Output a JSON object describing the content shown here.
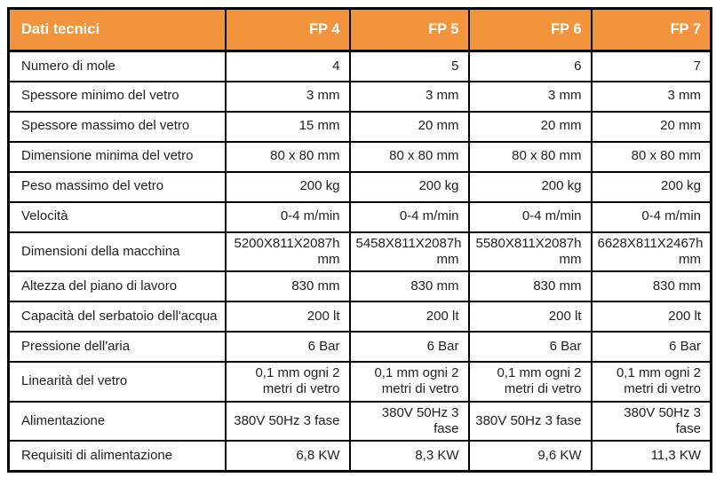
{
  "table": {
    "header": {
      "label": "Dati tecnici",
      "columns": [
        "FP 4",
        "FP 5",
        "FP 6",
        "FP 7"
      ]
    },
    "rows": [
      {
        "label": "Numero di mole",
        "values": [
          "4",
          "5",
          "6",
          "7"
        ]
      },
      {
        "label": "Spessore minimo del vetro",
        "values": [
          "3 mm",
          "3 mm",
          "3 mm",
          "3 mm"
        ]
      },
      {
        "label": "Spessore massimo del vetro",
        "values": [
          "15 mm",
          "20 mm",
          "20 mm",
          "20 mm"
        ]
      },
      {
        "label": "Dimensione minima del vetro",
        "values": [
          "80 x 80 mm",
          "80 x 80 mm",
          "80 x 80 mm",
          "80 x 80 mm"
        ]
      },
      {
        "label": "Peso massimo del vetro",
        "values": [
          "200 kg",
          "200 kg",
          "200 kg",
          "200 kg"
        ]
      },
      {
        "label": "Velocità",
        "values": [
          "0-4 m/min",
          "0-4 m/min",
          "0-4 m/min",
          "0-4 m/min"
        ]
      },
      {
        "label": "Dimensioni della macchina",
        "values": [
          "5200X811X2087h mm",
          "5458X811X2087h mm",
          "5580X811X2087h mm",
          "6628X811X2467h mm"
        ]
      },
      {
        "label": "Altezza del piano di lavoro",
        "values": [
          "830 mm",
          "830 mm",
          "830 mm",
          "830 mm"
        ]
      },
      {
        "label": "Capacità del serbatoio dell'acqua",
        "values": [
          "200 lt",
          "200 lt",
          "200 lt",
          "200 lt"
        ]
      },
      {
        "label": "Pressione dell'aria",
        "values": [
          "6 Bar",
          "6 Bar",
          "6 Bar",
          "6 Bar"
        ]
      },
      {
        "label": "Linearità del vetro",
        "values": [
          "0,1 mm ogni 2 metri di vetro",
          "0,1 mm ogni 2 metri di vetro",
          "0,1 mm ogni 2 metri di vetro",
          "0,1 mm ogni 2 metri di vetro"
        ]
      },
      {
        "label": "Alimentazione",
        "values": [
          "380V 50Hz 3 fase",
          "380V 50Hz 3 fase",
          "380V 50Hz 3 fase",
          "380V 50Hz 3 fase"
        ]
      },
      {
        "label": "Requisiti di alimentazione",
        "values": [
          "6,8 KW",
          "8,3 KW",
          "9,6 KW",
          "11,3 KW"
        ]
      }
    ],
    "colors": {
      "header_bg": "#F2943B",
      "header_text": "#FFFFFF",
      "body_text": "#221E1F",
      "border": "#000000"
    }
  }
}
